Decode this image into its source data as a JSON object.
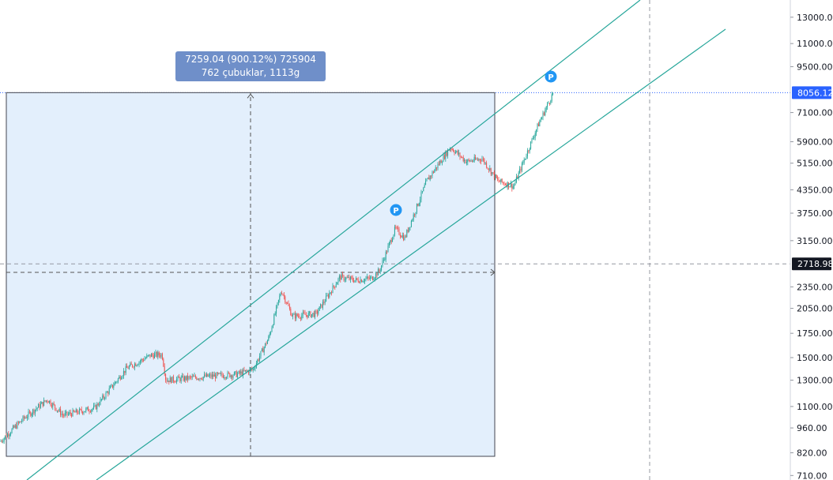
{
  "chart_data": {
    "type": "candlestick",
    "y_scale": "log",
    "ylim": [
      690,
      14500
    ],
    "y_ticks": [
      710,
      820,
      960,
      1100,
      1300,
      1500,
      1750,
      2050,
      2350,
      2718.98,
      3150,
      3750,
      4350,
      5150,
      5900,
      7100,
      8056.12,
      9500,
      11000,
      13000
    ],
    "y_tick_labels": [
      "710.00",
      "820.00",
      "960.00",
      "1100.00",
      "1300.00",
      "1500.00",
      "1750.00",
      "2050.00",
      "2350.00",
      "2718.98",
      "3150.00",
      "3750.00",
      "4350.00",
      "5150.00",
      "5900.00",
      "7100.00",
      "8056.12",
      "9500.00",
      "11000.00",
      "13000.00"
    ],
    "last_price": "8056.12",
    "crosshair_price": "2718.98",
    "price_path": [
      [
        0,
        880
      ],
      [
        30,
        1020
      ],
      [
        60,
        1150
      ],
      [
        80,
        1040
      ],
      [
        120,
        1090
      ],
      [
        160,
        1400
      ],
      [
        190,
        1520
      ],
      [
        205,
        1530
      ],
      [
        210,
        1300
      ],
      [
        260,
        1330
      ],
      [
        300,
        1350
      ],
      [
        320,
        1390
      ],
      [
        340,
        1700
      ],
      [
        356,
        2300
      ],
      [
        370,
        1950
      ],
      [
        400,
        1980
      ],
      [
        430,
        2500
      ],
      [
        450,
        2450
      ],
      [
        470,
        2480
      ],
      [
        480,
        2600
      ],
      [
        500,
        3400
      ],
      [
        512,
        3200
      ],
      [
        540,
        4600
      ],
      [
        570,
        5700
      ],
      [
        590,
        5200
      ],
      [
        610,
        5300
      ],
      [
        630,
        4600
      ],
      [
        650,
        4450
      ],
      [
        680,
        6500
      ],
      [
        700,
        8056
      ]
    ],
    "measure": {
      "line1": "7259.04 (900.12%) 725904",
      "line2": "762 çubuklar, 1113g"
    },
    "markers": [
      "P",
      "P"
    ],
    "colors": {
      "up": "#26a69a",
      "down": "#ef5350",
      "channel": "#26a69a",
      "box_fill": "#e3effc",
      "accent": "#2962ff",
      "marker": "#2196f3"
    }
  }
}
